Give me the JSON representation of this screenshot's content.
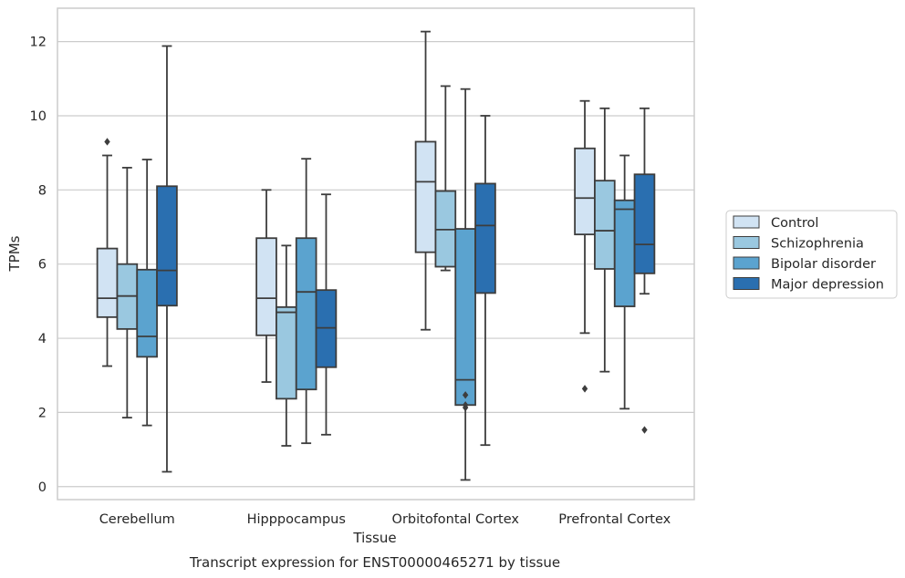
{
  "chart_data": {
    "type": "boxplot",
    "title": "Transcript expression for ENST00000465271 by tissue",
    "xlabel": "Tissue",
    "ylabel": "TPMs",
    "ylim": [
      -0.35,
      12.9
    ],
    "yticks": [
      0,
      2,
      4,
      6,
      8,
      10,
      12
    ],
    "grid": true,
    "legend_position": "right",
    "categories": [
      "Cerebellum",
      "Hipppocampus",
      "Orbitofontal Cortex",
      "Prefrontal Cortex"
    ],
    "series": [
      {
        "name": "Control",
        "color": "#d1e3f3",
        "boxes": [
          {
            "whislo": 3.25,
            "q1": 4.57,
            "med": 5.08,
            "q3": 6.42,
            "whishi": 8.93,
            "fliers": [
              9.3
            ]
          },
          {
            "whislo": 2.82,
            "q1": 4.08,
            "med": 5.08,
            "q3": 6.7,
            "whishi": 8.0,
            "fliers": []
          },
          {
            "whislo": 4.23,
            "q1": 6.32,
            "med": 8.22,
            "q3": 9.3,
            "whishi": 12.27,
            "fliers": []
          },
          {
            "whislo": 4.14,
            "q1": 6.8,
            "med": 7.78,
            "q3": 9.12,
            "whishi": 10.4,
            "fliers": [
              2.64
            ]
          }
        ]
      },
      {
        "name": "Schizophrenia",
        "color": "#9ac8e0",
        "boxes": [
          {
            "whislo": 1.86,
            "q1": 4.25,
            "med": 5.14,
            "q3": 6.0,
            "whishi": 8.6,
            "fliers": []
          },
          {
            "whislo": 1.1,
            "q1": 2.37,
            "med": 4.7,
            "q3": 4.84,
            "whishi": 6.5,
            "fliers": []
          },
          {
            "whislo": 5.83,
            "q1": 5.93,
            "med": 6.93,
            "q3": 7.97,
            "whishi": 10.8,
            "fliers": []
          },
          {
            "whislo": 3.1,
            "q1": 5.87,
            "med": 6.9,
            "q3": 8.25,
            "whishi": 10.2,
            "fliers": []
          }
        ]
      },
      {
        "name": "Bipolar disorder",
        "color": "#5ba3cf",
        "boxes": [
          {
            "whislo": 1.65,
            "q1": 3.5,
            "med": 4.05,
            "q3": 5.85,
            "whishi": 8.82,
            "fliers": []
          },
          {
            "whislo": 1.17,
            "q1": 2.62,
            "med": 5.25,
            "q3": 6.7,
            "whishi": 8.84,
            "fliers": []
          },
          {
            "whislo": 0.18,
            "q1": 2.2,
            "med": 2.88,
            "q3": 6.95,
            "whishi": 10.72,
            "fliers": [
              2.13,
              2.2,
              2.47
            ]
          },
          {
            "whislo": 2.1,
            "q1": 4.86,
            "med": 7.48,
            "q3": 7.72,
            "whishi": 8.93,
            "fliers": []
          }
        ]
      },
      {
        "name": "Major depression",
        "color": "#2a6fb0",
        "boxes": [
          {
            "whislo": 0.4,
            "q1": 4.88,
            "med": 5.83,
            "q3": 8.1,
            "whishi": 11.88,
            "fliers": []
          },
          {
            "whislo": 1.4,
            "q1": 3.22,
            "med": 4.28,
            "q3": 5.3,
            "whishi": 7.88,
            "fliers": []
          },
          {
            "whislo": 1.12,
            "q1": 5.22,
            "med": 7.04,
            "q3": 8.17,
            "whishi": 10.0,
            "fliers": []
          },
          {
            "whislo": 5.2,
            "q1": 5.75,
            "med": 6.53,
            "q3": 8.42,
            "whishi": 10.2,
            "fliers": [
              1.53
            ]
          }
        ]
      }
    ]
  }
}
